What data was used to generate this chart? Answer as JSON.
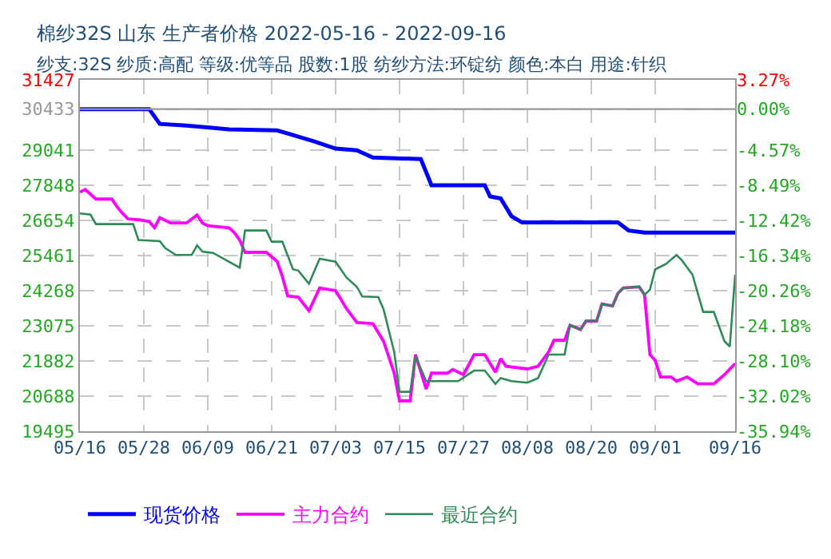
{
  "chart_data": {
    "type": "line",
    "title": "棉纱32S 山东 生产者价格 2022-05-16 - 2022-09-16",
    "subtitle": "纱支:32S 纱质:高配 等级:优等品 股数:1股 纺纱方法:环锭纺 颜色:本白 用途:针织",
    "xlim": [
      "2022-05-16",
      "2022-09-16"
    ],
    "xticks": [
      {
        "value": "2022-05-16",
        "label": "05/16"
      },
      {
        "value": "2022-05-28",
        "label": "05/28"
      },
      {
        "value": "2022-06-09",
        "label": "06/09"
      },
      {
        "value": "2022-06-21",
        "label": "06/21"
      },
      {
        "value": "2022-07-03",
        "label": "07/03"
      },
      {
        "value": "2022-07-15",
        "label": "07/15"
      },
      {
        "value": "2022-07-27",
        "label": "07/27"
      },
      {
        "value": "2022-08-08",
        "label": "08/08"
      },
      {
        "value": "2022-08-20",
        "label": "08/20"
      },
      {
        "value": "2022-09-01",
        "label": "09/01"
      },
      {
        "value": "2022-09-16",
        "label": "09/16"
      }
    ],
    "ylim": [
      19495,
      31427
    ],
    "yticks": [
      19495,
      20688,
      21882,
      23075,
      24268,
      25461,
      26654,
      27848,
      29041,
      30433,
      31427
    ],
    "y2lim": [
      -35.94,
      3.27
    ],
    "y2ticks": [
      {
        "value": -35.94,
        "label": "-35.94%"
      },
      {
        "value": -32.02,
        "label": "-32.02%"
      },
      {
        "value": -28.1,
        "label": "-28.10%"
      },
      {
        "value": -24.18,
        "label": "-24.18%"
      },
      {
        "value": -20.26,
        "label": "-20.26%"
      },
      {
        "value": -16.34,
        "label": "-16.34%"
      },
      {
        "value": -12.42,
        "label": "-12.42%"
      },
      {
        "value": -8.49,
        "label": "-8.49%"
      },
      {
        "value": -4.57,
        "label": "-4.57%"
      },
      {
        "value": 0,
        "label": "0.00%"
      },
      {
        "value": 3.27,
        "label": "3.27%"
      }
    ],
    "ref_lines": [
      {
        "axis": "y",
        "value": 30433,
        "label": null,
        "color": "#999999",
        "line_style": "solid"
      }
    ],
    "grid": true,
    "legend": "bottom",
    "marker": "none",
    "line_style": "solid",
    "series": [
      {
        "name": "现货价格",
        "color": "#0000ff",
        "x": [
          "2022-05-16",
          "2022-05-29",
          "2022-05-31",
          "2022-06-05",
          "2022-06-13",
          "2022-06-22",
          "2022-06-24",
          "2022-06-29",
          "2022-07-03",
          "2022-07-07",
          "2022-07-10",
          "2022-07-19",
          "2022-07-21",
          "2022-07-31",
          "2022-08-01",
          "2022-08-03",
          "2022-08-05",
          "2022-08-07",
          "2022-08-25",
          "2022-08-27",
          "2022-08-30",
          "2022-09-16"
        ],
        "values": [
          30433,
          30433,
          29930,
          29876,
          29746,
          29710,
          29604,
          29333,
          29095,
          29036,
          28790,
          28737,
          27847,
          27847,
          27468,
          27397,
          26800,
          26583,
          26583,
          26312,
          26240,
          26240
        ]
      },
      {
        "name": "主力合约",
        "color": "#ff00ff",
        "x": [
          "2022-05-16",
          "2022-05-17",
          "2022-05-19",
          "2022-05-22",
          "2022-05-23",
          "2022-05-24",
          "2022-05-25",
          "2022-05-27",
          "2022-05-29",
          "2022-05-30",
          "2022-05-31",
          "2022-06-02",
          "2022-06-05",
          "2022-06-07",
          "2022-06-08",
          "2022-06-09",
          "2022-06-13",
          "2022-06-14",
          "2022-06-15",
          "2022-06-16",
          "2022-06-20",
          "2022-06-22",
          "2022-06-23",
          "2022-06-24",
          "2022-06-26",
          "2022-06-28",
          "2022-06-30",
          "2022-07-03",
          "2022-07-05",
          "2022-07-07",
          "2022-07-10",
          "2022-07-12",
          "2022-07-14",
          "2022-07-15",
          "2022-07-17",
          "2022-07-18",
          "2022-07-20",
          "2022-07-21",
          "2022-07-24",
          "2022-07-25",
          "2022-07-27",
          "2022-07-29",
          "2022-07-31",
          "2022-08-02",
          "2022-08-03",
          "2022-08-04",
          "2022-08-08",
          "2022-08-10",
          "2022-08-12",
          "2022-08-13",
          "2022-08-15",
          "2022-08-16",
          "2022-08-18",
          "2022-08-19",
          "2022-08-21",
          "2022-08-22",
          "2022-08-24",
          "2022-08-25",
          "2022-08-26",
          "2022-08-29",
          "2022-08-30",
          "2022-08-31",
          "2022-09-01",
          "2022-09-02",
          "2022-09-04",
          "2022-09-05",
          "2022-09-07",
          "2022-09-09",
          "2022-09-12",
          "2022-09-14",
          "2022-09-16"
        ],
        "values": [
          27614,
          27706,
          27380,
          27380,
          27109,
          26893,
          26708,
          26675,
          26620,
          26404,
          26746,
          26567,
          26567,
          26838,
          26567,
          26475,
          26400,
          26240,
          25987,
          25569,
          25569,
          25265,
          24756,
          24089,
          24050,
          23584,
          24360,
          24270,
          23670,
          23183,
          23150,
          22553,
          21468,
          20525,
          20525,
          22097,
          20926,
          21468,
          21468,
          21593,
          21414,
          22097,
          22097,
          21500,
          21957,
          21700,
          21610,
          21700,
          22190,
          22586,
          22586,
          23096,
          22950,
          23237,
          23237,
          23818,
          23750,
          24180,
          24360,
          24400,
          24125,
          22097,
          21900,
          21338,
          21338,
          21197,
          21338,
          21105,
          21105,
          21414,
          21794
        ]
      },
      {
        "name": "最近合约",
        "color": "#2e8b57",
        "x": [
          "2022-05-16",
          "2022-05-18",
          "2022-05-19",
          "2022-05-26",
          "2022-05-27",
          "2022-05-31",
          "2022-06-01",
          "2022-06-03",
          "2022-06-06",
          "2022-06-07",
          "2022-06-08",
          "2022-06-10",
          "2022-06-12",
          "2022-06-15",
          "2022-06-16",
          "2022-06-20",
          "2022-06-21",
          "2022-06-23",
          "2022-06-25",
          "2022-06-26",
          "2022-06-28",
          "2022-06-30",
          "2022-07-03",
          "2022-07-05",
          "2022-07-07",
          "2022-07-08",
          "2022-07-11",
          "2022-07-12",
          "2022-07-14",
          "2022-07-15",
          "2022-07-17",
          "2022-07-18",
          "2022-07-20",
          "2022-07-26",
          "2022-07-29",
          "2022-07-31",
          "2022-08-02",
          "2022-08-03",
          "2022-08-05",
          "2022-08-08",
          "2022-08-10",
          "2022-08-12",
          "2022-08-15",
          "2022-08-16",
          "2022-08-18",
          "2022-08-19",
          "2022-08-21",
          "2022-08-22",
          "2022-08-24",
          "2022-08-25",
          "2022-08-26",
          "2022-08-29",
          "2022-08-30",
          "2022-08-31",
          "2022-09-01",
          "2022-09-03",
          "2022-09-05",
          "2022-09-06",
          "2022-09-08",
          "2022-09-10",
          "2022-09-12",
          "2022-09-14",
          "2022-09-15",
          "2022-09-16"
        ],
        "values": [
          26893,
          26850,
          26529,
          26529,
          25987,
          25950,
          25716,
          25482,
          25482,
          25807,
          25597,
          25550,
          25352,
          25048,
          26312,
          26312,
          25933,
          25933,
          24994,
          24950,
          24506,
          25352,
          25250,
          24723,
          24398,
          24073,
          24050,
          23638,
          22190,
          20834,
          20834,
          22043,
          21197,
          21197,
          21555,
          21555,
          21100,
          21300,
          21197,
          21144,
          21300,
          22097,
          22097,
          23096,
          22950,
          23237,
          23237,
          23818,
          23750,
          24180,
          24360,
          24400,
          24125,
          24300,
          24994,
          25173,
          25482,
          25300,
          24810,
          23546,
          23546,
          22553,
          22369,
          24810
        ]
      }
    ]
  }
}
